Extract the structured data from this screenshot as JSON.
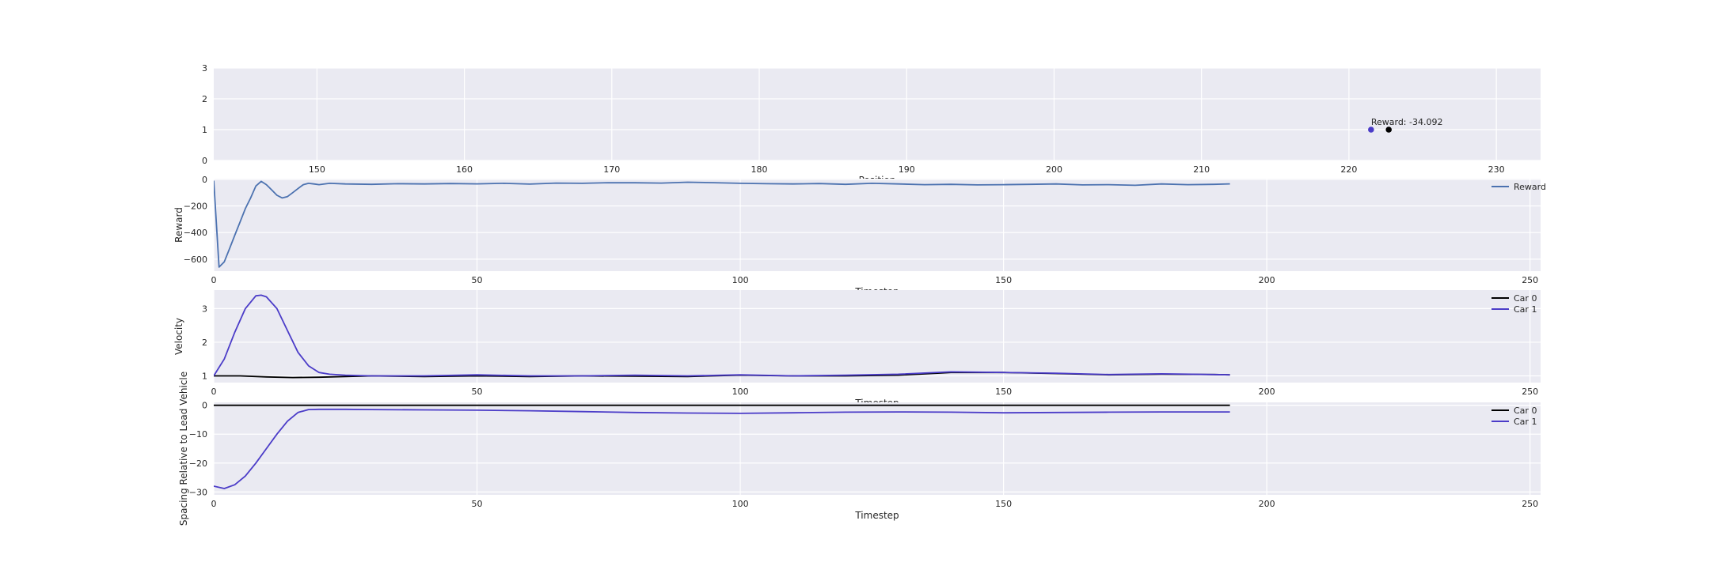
{
  "colors": {
    "background": "#ffffff",
    "axes_face": "#eaeaf2",
    "grid": "#ffffff",
    "reward_line": "#4c72b0",
    "car0": "#000000",
    "car1": "#4b3cc8",
    "text": "#262626"
  },
  "chart_data": [
    {
      "type": "scatter",
      "xlabel": "Position",
      "ylabel": "",
      "xlim": [
        143,
        233
      ],
      "ylim": [
        0,
        3
      ],
      "xticks": [
        150,
        160,
        170,
        180,
        190,
        200,
        210,
        220,
        230
      ],
      "yticks": [
        0,
        1,
        2,
        3
      ],
      "grid": true,
      "points": [
        {
          "x": 221.5,
          "y": 1,
          "color": "#4b3cc8"
        },
        {
          "x": 222.7,
          "y": 1,
          "color": "#000000"
        }
      ],
      "annotation": {
        "text": "Reward: -34.092",
        "x": 221.5,
        "y": 1
      }
    },
    {
      "type": "line",
      "xlabel": "Timestep",
      "ylabel": "Reward",
      "xlim": [
        0,
        252
      ],
      "ylim": [
        -690,
        5
      ],
      "xticks": [
        0,
        50,
        100,
        150,
        200,
        250
      ],
      "yticks": [
        0,
        -200,
        -400,
        -600
      ],
      "grid": true,
      "legend": "top-right",
      "series": [
        {
          "name": "Reward",
          "color": "#4c72b0",
          "x": [
            0,
            1,
            2,
            3,
            4,
            5,
            6,
            7,
            8,
            9,
            10,
            11,
            12,
            13,
            14,
            15,
            16,
            17,
            18,
            19,
            20,
            22,
            25,
            30,
            35,
            40,
            45,
            50,
            55,
            60,
            65,
            70,
            75,
            80,
            85,
            90,
            95,
            100,
            105,
            110,
            115,
            120,
            125,
            130,
            135,
            140,
            145,
            150,
            155,
            160,
            165,
            170,
            175,
            180,
            185,
            190,
            193
          ],
          "y": [
            -10,
            -660,
            -620,
            -520,
            -420,
            -320,
            -220,
            -140,
            -50,
            -15,
            -40,
            -80,
            -120,
            -140,
            -130,
            -100,
            -70,
            -40,
            -30,
            -35,
            -40,
            -30,
            -35,
            -38,
            -33,
            -35,
            -32,
            -34,
            -30,
            -36,
            -28,
            -30,
            -25,
            -26,
            -28,
            -22,
            -25,
            -30,
            -33,
            -35,
            -32,
            -38,
            -30,
            -35,
            -40,
            -38,
            -42,
            -40,
            -38,
            -35,
            -42,
            -40,
            -45,
            -35,
            -40,
            -38,
            -34
          ]
        }
      ]
    },
    {
      "type": "line",
      "xlabel": "Timestep",
      "ylabel": "Velocity",
      "xlim": [
        0,
        252
      ],
      "ylim": [
        0.8,
        3.55
      ],
      "xticks": [
        0,
        50,
        100,
        150,
        200,
        250
      ],
      "yticks": [
        1,
        2,
        3
      ],
      "grid": true,
      "legend": "top-right",
      "series": [
        {
          "name": "Car 0",
          "color": "#000000",
          "x": [
            0,
            5,
            10,
            15,
            20,
            25,
            30,
            40,
            50,
            60,
            70,
            80,
            90,
            100,
            110,
            120,
            130,
            140,
            150,
            160,
            170,
            180,
            190,
            193
          ],
          "y": [
            1.0,
            1.0,
            0.97,
            0.95,
            0.96,
            0.98,
            1.0,
            0.98,
            1.0,
            0.98,
            1.0,
            0.99,
            0.98,
            1.02,
            1.0,
            1.0,
            1.02,
            1.1,
            1.1,
            1.07,
            1.03,
            1.05,
            1.04,
            1.03
          ]
        },
        {
          "name": "Car 1",
          "color": "#4b3cc8",
          "x": [
            0,
            2,
            4,
            6,
            8,
            9,
            10,
            12,
            14,
            16,
            18,
            20,
            22,
            25,
            30,
            40,
            50,
            60,
            70,
            80,
            90,
            100,
            110,
            120,
            130,
            140,
            150,
            160,
            170,
            180,
            190,
            193
          ],
          "y": [
            1.0,
            1.5,
            2.3,
            3.0,
            3.38,
            3.4,
            3.35,
            3.0,
            2.35,
            1.7,
            1.3,
            1.1,
            1.05,
            1.02,
            1.0,
            1.0,
            1.03,
            1.0,
            1.0,
            1.02,
            1.0,
            1.03,
            1.0,
            1.02,
            1.05,
            1.12,
            1.1,
            1.08,
            1.04,
            1.06,
            1.04,
            1.03
          ]
        }
      ]
    },
    {
      "type": "line",
      "xlabel": "Timestep",
      "ylabel": "Spacing Relative to Lead Vehicle",
      "xlim": [
        0,
        252
      ],
      "ylim": [
        -31,
        1
      ],
      "xticks": [
        0,
        50,
        100,
        150,
        200,
        250
      ],
      "yticks": [
        0,
        -10,
        -20,
        -30
      ],
      "grid": true,
      "legend": "top-right",
      "series": [
        {
          "name": "Car 0",
          "color": "#000000",
          "x": [
            0,
            193
          ],
          "y": [
            0,
            0
          ]
        },
        {
          "name": "Car 1",
          "color": "#4b3cc8",
          "x": [
            0,
            2,
            4,
            6,
            8,
            10,
            12,
            14,
            16,
            18,
            20,
            25,
            30,
            40,
            50,
            60,
            70,
            80,
            90,
            100,
            110,
            120,
            130,
            140,
            150,
            160,
            170,
            180,
            193
          ],
          "y": [
            -28,
            -28.8,
            -27.5,
            -24.5,
            -20,
            -15,
            -10,
            -5.5,
            -2.5,
            -1.5,
            -1.4,
            -1.4,
            -1.5,
            -1.6,
            -1.7,
            -1.9,
            -2.2,
            -2.5,
            -2.7,
            -2.8,
            -2.6,
            -2.4,
            -2.3,
            -2.4,
            -2.6,
            -2.5,
            -2.4,
            -2.3,
            -2.3
          ]
        }
      ]
    }
  ]
}
